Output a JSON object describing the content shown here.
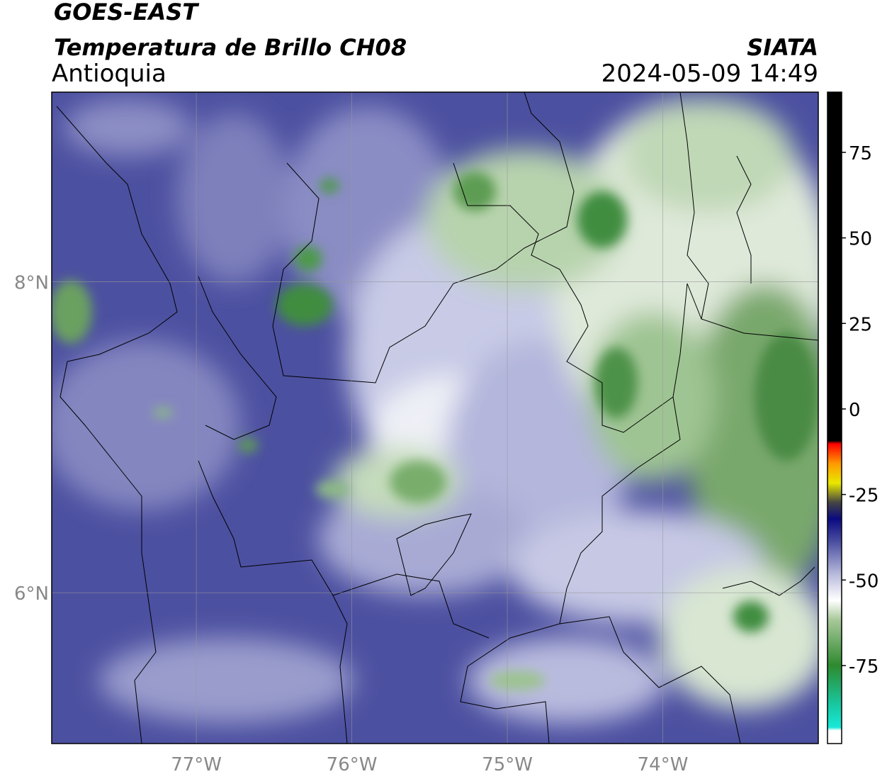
{
  "header": {
    "title": "GOES-EAST",
    "subtitle": "Temperatura de Brillo CH08",
    "region": "Antioquia",
    "source": "SIATA",
    "datetime": "2024-05-09 14:49"
  },
  "map": {
    "xlim": [
      -77.93,
      -73.0
    ],
    "ylim": [
      5.03,
      9.22
    ],
    "xticks": [
      {
        "value": -77,
        "label": "77°W"
      },
      {
        "value": -76,
        "label": "76°W"
      },
      {
        "value": -75,
        "label": "75°W"
      },
      {
        "value": -74,
        "label": "74°W"
      }
    ],
    "yticks": [
      {
        "value": 8,
        "label": "8°N"
      },
      {
        "value": 6,
        "label": "6°N"
      }
    ],
    "grid": true
  },
  "colorbar": {
    "lim": [
      -97.8,
      92.6
    ],
    "ticks": [
      75,
      50,
      25,
      0,
      -25,
      -50,
      -75
    ]
  }
}
